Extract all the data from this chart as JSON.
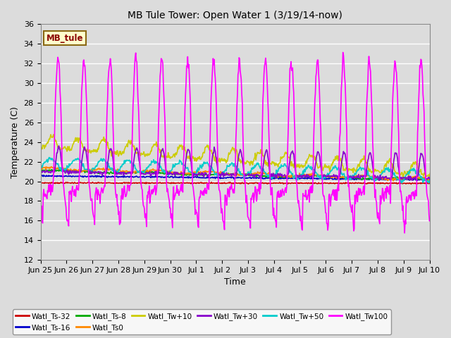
{
  "title": "MB Tule Tower: Open Water 1 (3/19/14-now)",
  "xlabel": "Time",
  "ylabel": "Temperature (C)",
  "ylim": [
    12,
    36
  ],
  "yticks": [
    12,
    14,
    16,
    18,
    20,
    22,
    24,
    26,
    28,
    30,
    32,
    34,
    36
  ],
  "bg_color": "#dcdcdc",
  "legend_label": "MB_tule",
  "series": {
    "Watl_Ts-32": {
      "color": "#cc0000",
      "lw": 1.2
    },
    "Watl_Ts-16": {
      "color": "#0000cc",
      "lw": 1.2
    },
    "Watl_Ts-8": {
      "color": "#00aa00",
      "lw": 1.2
    },
    "Watl_Ts0": {
      "color": "#ff8800",
      "lw": 1.2
    },
    "Watl_Tw+10": {
      "color": "#cccc00",
      "lw": 1.2
    },
    "Watl_Tw+30": {
      "color": "#8800cc",
      "lw": 1.2
    },
    "Watl_Tw+50": {
      "color": "#00cccc",
      "lw": 1.2
    },
    "Watl_Tw100": {
      "color": "#ff00ff",
      "lw": 1.2
    }
  },
  "xtick_labels": [
    "Jun 25",
    "Jun 26",
    "Jun 27",
    "Jun 28",
    "Jun 29",
    "Jun 30",
    "Jul 1",
    "Jul 2",
    "Jul 3",
    "Jul 4",
    "Jul 5",
    "Jul 6",
    "Jul 7",
    "Jul 8",
    "Jul 9",
    "Jul 10"
  ]
}
